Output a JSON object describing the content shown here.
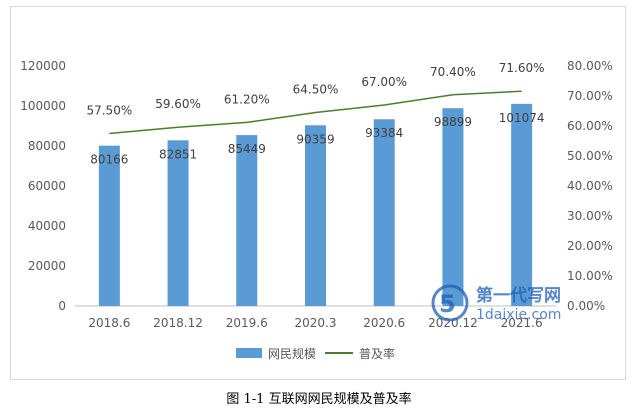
{
  "caption": "图 1-1  互联网网民规模及普及率",
  "watermark_text": "第一代写网",
  "watermark_url": "1daixie.com",
  "chart_data": {
    "type": "bar+line",
    "categories": [
      "2018.6",
      "2018.12",
      "2019.6",
      "2020.3",
      "2020.6",
      "2020.12",
      "2021.6"
    ],
    "series": [
      {
        "name": "网民规模",
        "type": "bar",
        "axis": "left",
        "values": [
          80166,
          82851,
          85449,
          90359,
          93384,
          98899,
          101074
        ],
        "color": "#5b9bd5"
      },
      {
        "name": "普及率",
        "type": "line",
        "axis": "right",
        "values": [
          57.5,
          59.6,
          61.2,
          64.5,
          67.0,
          70.4,
          71.6
        ],
        "labels": [
          "57.50%",
          "59.60%",
          "61.20%",
          "64.50%",
          "67.00%",
          "70.40%",
          "71.60%"
        ],
        "color": "#4e7d2d"
      }
    ],
    "y_left": {
      "lim": [
        0,
        120000
      ],
      "ticks": [
        "0",
        "20000",
        "40000",
        "60000",
        "80000",
        "100000",
        "120000"
      ]
    },
    "y_right": {
      "lim": [
        0,
        80
      ],
      "ticks": [
        "0.00%",
        "10.00%",
        "20.00%",
        "30.00%",
        "40.00%",
        "50.00%",
        "60.00%",
        "70.00%",
        "80.00%"
      ]
    },
    "grid": false,
    "legend_position": "bottom"
  }
}
